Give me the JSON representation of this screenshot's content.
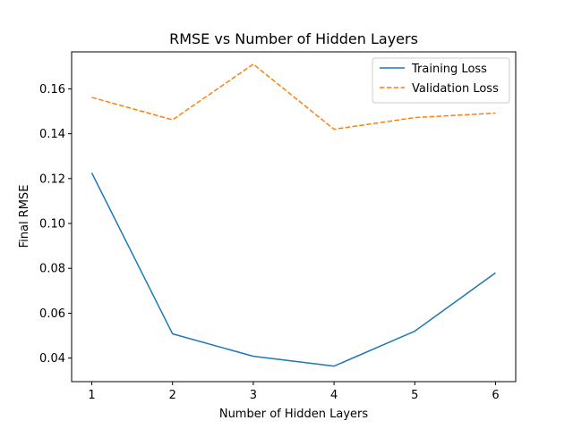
{
  "chart_data": {
    "type": "line",
    "title": "RMSE vs Number of Hidden Layers",
    "xlabel": "Number of Hidden Layers",
    "ylabel": "Final RMSE",
    "x": [
      1,
      2,
      3,
      4,
      5,
      6
    ],
    "xticks": [
      "1",
      "2",
      "3",
      "4",
      "5",
      "6"
    ],
    "yticks": [
      "0.04",
      "0.06",
      "0.08",
      "0.10",
      "0.12",
      "0.14",
      "0.16"
    ],
    "ytick_values": [
      0.04,
      0.06,
      0.08,
      0.1,
      0.12,
      0.14,
      0.16
    ],
    "xlim": [
      0.75,
      6.25
    ],
    "ylim": [
      0.0295,
      0.1765
    ],
    "grid": false,
    "legend_position": "top-right",
    "series": [
      {
        "name": "Training Loss",
        "values": [
          0.1225,
          0.0508,
          0.0408,
          0.0364,
          0.052,
          0.078
        ],
        "color": "#1f77b4",
        "style": "solid"
      },
      {
        "name": "Validation Loss",
        "values": [
          0.1562,
          0.1462,
          0.171,
          0.142,
          0.1472,
          0.1492
        ],
        "color": "#ff7f0e",
        "style": "dashed"
      }
    ]
  }
}
